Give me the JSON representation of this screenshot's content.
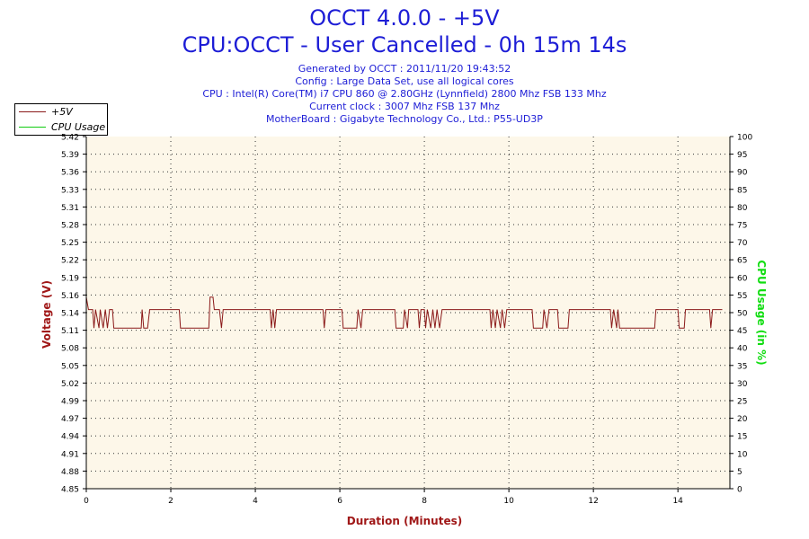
{
  "header": {
    "title_line1": "OCCT 4.0.0 - +5V",
    "title_line2": "CPU:OCCT - User Cancelled - 0h 15m 14s",
    "info": [
      "Generated by OCCT : 2011/11/20 19:43:52",
      "Config : Large Data Set, use all logical cores",
      "CPU : Intel(R) Core(TM) i7 CPU 860 @ 2.80GHz (Lynnfield) 2800 Mhz FSB 133 Mhz",
      "Current clock : 3007 Mhz FSB 137 Mhz",
      "MotherBoard : Gigabyte Technology Co., Ltd.: P55-UD3P"
    ]
  },
  "legend": {
    "series": [
      {
        "label": "+5V",
        "color": "#8b1a1a"
      },
      {
        "label": "CPU Usage",
        "color": "#11cc11"
      }
    ]
  },
  "chart_data": {
    "type": "line",
    "title": "OCCT 4.0.0 - +5V",
    "xlabel": "Duration (Minutes)",
    "ylabel": "Voltage (V)",
    "y2label": "CPU Usage (in %)",
    "xlim": [
      0,
      15.23
    ],
    "ylim": [
      4.85,
      5.42
    ],
    "y2lim": [
      0,
      100
    ],
    "x_ticks": [
      "0",
      "2",
      "4",
      "6",
      "8",
      "10",
      "12",
      "14"
    ],
    "y_ticks": [
      "4.85",
      "4.88",
      "4.91",
      "4.94",
      "4.97",
      "4.99",
      "5.02",
      "5.05",
      "5.08",
      "5.11",
      "5.14",
      "5.16",
      "5.19",
      "5.22",
      "5.25",
      "5.28",
      "5.31",
      "5.33",
      "5.36",
      "5.39",
      "5.42"
    ],
    "y2_ticks": [
      "0",
      "5",
      "10",
      "15",
      "20",
      "25",
      "30",
      "35",
      "40",
      "45",
      "50",
      "55",
      "60",
      "65",
      "70",
      "75",
      "80",
      "85",
      "90",
      "95",
      "100"
    ],
    "grid": true,
    "legend_position": "top-left",
    "plot_background": "#fdf7e9",
    "series": [
      {
        "name": "+5V",
        "color": "#8b1a1a",
        "points": [
          [
            0.0,
            5.16
          ],
          [
            0.05,
            5.14
          ],
          [
            0.15,
            5.14
          ],
          [
            0.18,
            5.11
          ],
          [
            0.22,
            5.14
          ],
          [
            0.3,
            5.11
          ],
          [
            0.33,
            5.14
          ],
          [
            0.4,
            5.11
          ],
          [
            0.45,
            5.14
          ],
          [
            0.5,
            5.11
          ],
          [
            0.55,
            5.14
          ],
          [
            0.62,
            5.14
          ],
          [
            0.65,
            5.11
          ],
          [
            1.3,
            5.11
          ],
          [
            1.32,
            5.14
          ],
          [
            1.36,
            5.11
          ],
          [
            1.45,
            5.11
          ],
          [
            1.5,
            5.14
          ],
          [
            2.2,
            5.14
          ],
          [
            2.23,
            5.11
          ],
          [
            2.9,
            5.11
          ],
          [
            2.93,
            5.16
          ],
          [
            3.0,
            5.16
          ],
          [
            3.03,
            5.14
          ],
          [
            3.15,
            5.14
          ],
          [
            3.2,
            5.11
          ],
          [
            3.24,
            5.14
          ],
          [
            4.35,
            5.14
          ],
          [
            4.38,
            5.11
          ],
          [
            4.42,
            5.14
          ],
          [
            4.46,
            5.11
          ],
          [
            4.5,
            5.14
          ],
          [
            5.6,
            5.14
          ],
          [
            5.63,
            5.11
          ],
          [
            5.67,
            5.14
          ],
          [
            6.05,
            5.14
          ],
          [
            6.08,
            5.11
          ],
          [
            6.4,
            5.11
          ],
          [
            6.43,
            5.14
          ],
          [
            6.5,
            5.11
          ],
          [
            6.54,
            5.14
          ],
          [
            7.3,
            5.14
          ],
          [
            7.33,
            5.11
          ],
          [
            7.5,
            5.11
          ],
          [
            7.53,
            5.14
          ],
          [
            7.6,
            5.11
          ],
          [
            7.63,
            5.14
          ],
          [
            7.85,
            5.14
          ],
          [
            7.88,
            5.11
          ],
          [
            7.92,
            5.14
          ],
          [
            8.0,
            5.14
          ],
          [
            8.03,
            5.11
          ],
          [
            8.07,
            5.14
          ],
          [
            8.15,
            5.11
          ],
          [
            8.2,
            5.14
          ],
          [
            8.25,
            5.11
          ],
          [
            8.3,
            5.14
          ],
          [
            8.36,
            5.11
          ],
          [
            8.42,
            5.14
          ],
          [
            9.55,
            5.14
          ],
          [
            9.58,
            5.11
          ],
          [
            9.62,
            5.14
          ],
          [
            9.68,
            5.11
          ],
          [
            9.72,
            5.14
          ],
          [
            9.8,
            5.11
          ],
          [
            9.84,
            5.14
          ],
          [
            9.9,
            5.11
          ],
          [
            9.95,
            5.14
          ],
          [
            10.55,
            5.14
          ],
          [
            10.58,
            5.11
          ],
          [
            10.8,
            5.11
          ],
          [
            10.83,
            5.14
          ],
          [
            10.9,
            5.11
          ],
          [
            10.95,
            5.14
          ],
          [
            11.15,
            5.14
          ],
          [
            11.18,
            5.11
          ],
          [
            11.4,
            5.11
          ],
          [
            11.43,
            5.14
          ],
          [
            12.4,
            5.14
          ],
          [
            12.43,
            5.11
          ],
          [
            12.48,
            5.14
          ],
          [
            12.55,
            5.11
          ],
          [
            12.58,
            5.14
          ],
          [
            12.62,
            5.11
          ],
          [
            13.45,
            5.11
          ],
          [
            13.48,
            5.14
          ],
          [
            14.0,
            5.14
          ],
          [
            14.03,
            5.11
          ],
          [
            14.15,
            5.11
          ],
          [
            14.18,
            5.14
          ],
          [
            14.75,
            5.14
          ],
          [
            14.78,
            5.11
          ],
          [
            14.82,
            5.14
          ],
          [
            15.0,
            5.14
          ],
          [
            15.05,
            5.14
          ]
        ]
      },
      {
        "name": "CPU Usage",
        "color": "#11cc11",
        "points": []
      }
    ]
  }
}
